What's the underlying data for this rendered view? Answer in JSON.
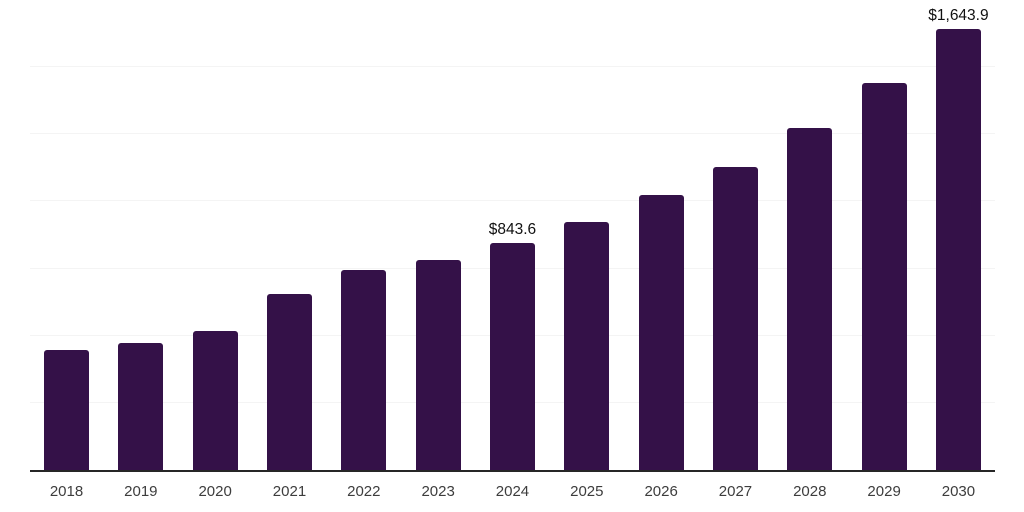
{
  "page": {
    "background_color": "#ffffff"
  },
  "chart_data": {
    "type": "bar",
    "title": "",
    "xlabel": "",
    "ylabel": "",
    "categories": [
      "2018",
      "2019",
      "2020",
      "2021",
      "2022",
      "2023",
      "2024",
      "2025",
      "2026",
      "2027",
      "2028",
      "2029",
      "2030"
    ],
    "values": [
      447,
      474,
      519,
      656,
      745,
      782,
      843.6,
      925,
      1024,
      1129,
      1272,
      1440,
      1643.9
    ],
    "data_labels": [
      {
        "category": "2024",
        "text": "$843.6"
      },
      {
        "category": "2030",
        "text": "$1,643.9"
      }
    ],
    "ylim": [
      0,
      1750
    ],
    "gridline_step": 250,
    "grid": true,
    "legend": false,
    "y_axis_tick_labels_visible": false,
    "colors": {
      "bar": "#341148",
      "axis_line": "#262626",
      "gridline": "#f4f4f4",
      "x_tick_label": "#3d3d3d",
      "data_label": "#111111"
    }
  }
}
